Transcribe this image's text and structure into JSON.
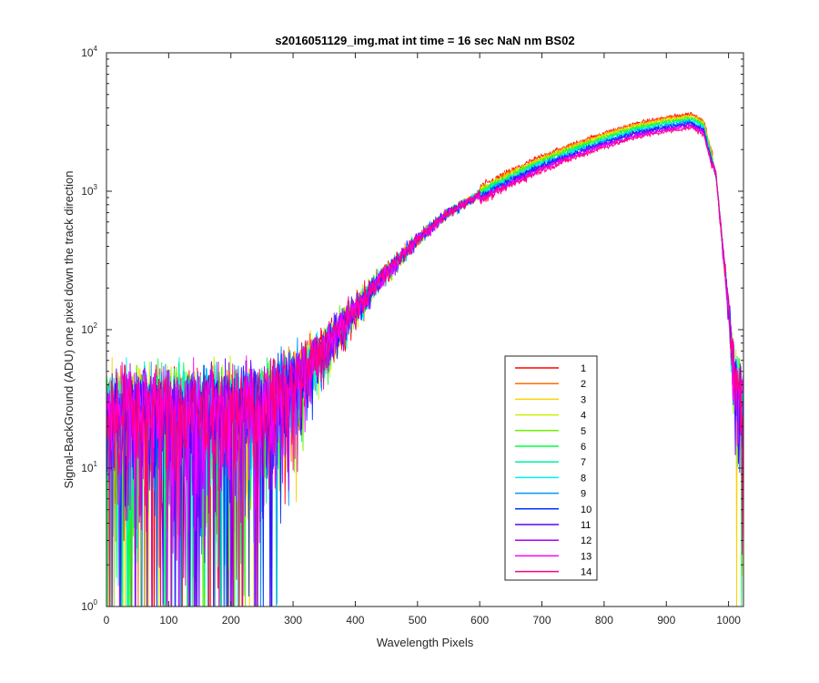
{
  "chart_data": {
    "type": "line",
    "title": "s2016051129_img.mat int time = 16 sec  NaN nm BS02",
    "xlabel": "Wavelength Pixels",
    "ylabel": "Signal-BackGround (ADU) one pixel down the track direction",
    "xlim": [
      0,
      1024
    ],
    "ylim": [
      1,
      10000
    ],
    "yscale": "log",
    "grid": false,
    "legend_position": "lower-right",
    "x_ticks": [
      "0",
      "100",
      "200",
      "300",
      "400",
      "500",
      "600",
      "700",
      "800",
      "900",
      "1000"
    ],
    "y_ticks": [
      {
        "base": "10",
        "exp": "0",
        "value": 1
      },
      {
        "base": "10",
        "exp": "1",
        "value": 10
      },
      {
        "base": "10",
        "exp": "2",
        "value": 100
      },
      {
        "base": "10",
        "exp": "3",
        "value": 1000
      },
      {
        "base": "10",
        "exp": "4",
        "value": 10000
      }
    ],
    "profile_points": {
      "x": [
        0,
        50,
        100,
        150,
        200,
        250,
        300,
        350,
        400,
        450,
        500,
        550,
        600,
        650,
        700,
        750,
        800,
        850,
        900,
        940,
        960,
        980,
        1000,
        1010,
        1024
      ],
      "y": [
        25,
        25,
        25,
        25,
        25,
        28,
        40,
        75,
        140,
        260,
        450,
        700,
        950,
        1250,
        1600,
        1950,
        2350,
        2750,
        3050,
        3250,
        2900,
        1300,
        140,
        40,
        30
      ]
    },
    "series": [
      {
        "name": "1",
        "color": "#ff0000"
      },
      {
        "name": "2",
        "color": "#ff6e00"
      },
      {
        "name": "3",
        "color": "#ffd200"
      },
      {
        "name": "4",
        "color": "#c8f000"
      },
      {
        "name": "5",
        "color": "#6ef000"
      },
      {
        "name": "6",
        "color": "#00ff40"
      },
      {
        "name": "7",
        "color": "#00f0a0"
      },
      {
        "name": "8",
        "color": "#00f0f0"
      },
      {
        "name": "9",
        "color": "#0096ff"
      },
      {
        "name": "10",
        "color": "#0032ff"
      },
      {
        "name": "11",
        "color": "#5a00ff"
      },
      {
        "name": "12",
        "color": "#aa00ff"
      },
      {
        "name": "13",
        "color": "#ff00ff"
      },
      {
        "name": "14",
        "color": "#ff0080"
      }
    ]
  }
}
